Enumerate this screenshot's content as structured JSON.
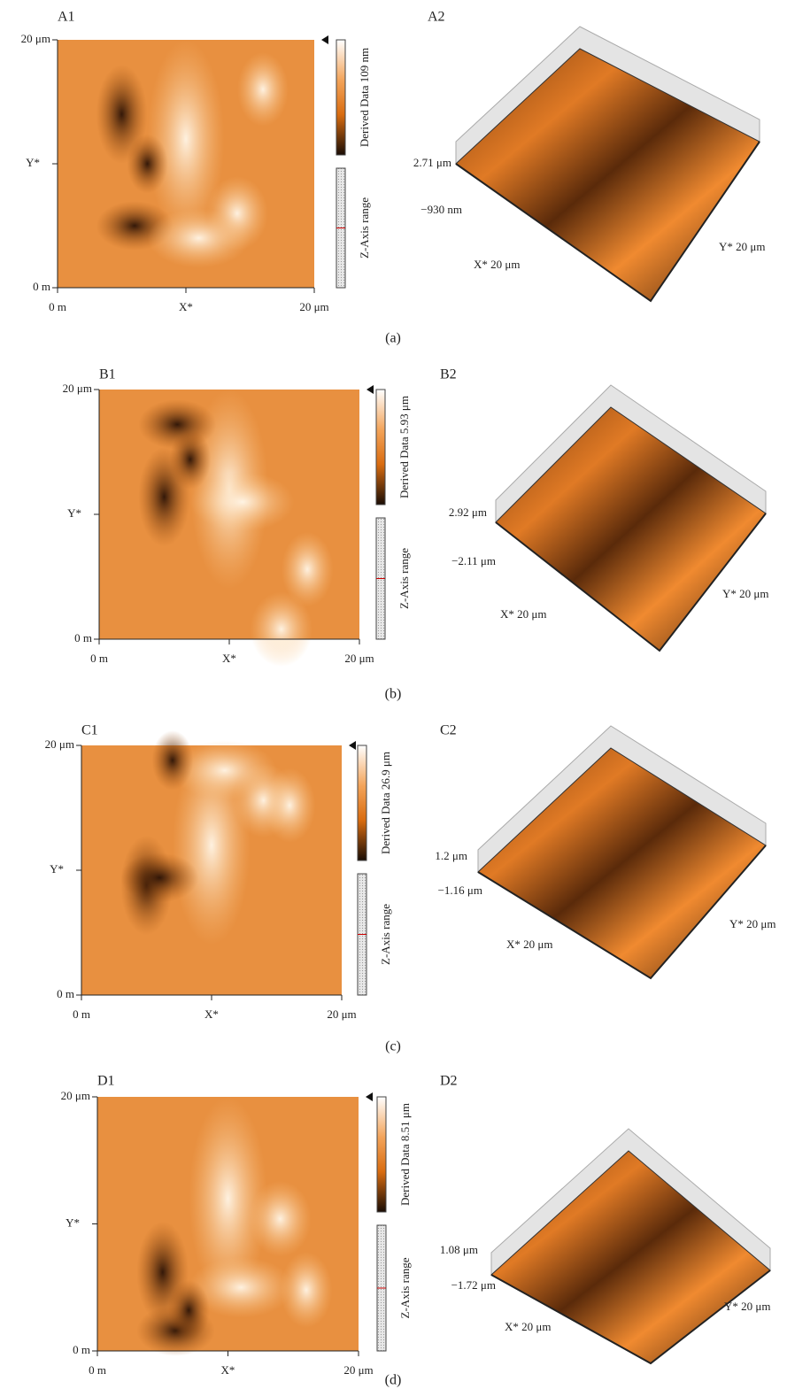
{
  "panels": [
    {
      "label_2d": "A1",
      "label_3d": "A2",
      "y_top": "20 μm",
      "y_mid": "Y*",
      "y_bottom": "0 m",
      "x_left": "0 m",
      "x_mid": "X*",
      "x_right": "20 μm",
      "colorbar_label": "Derived Data 109 nm",
      "z_range_label": "Z-Axis range",
      "z_max": "2.71 μm",
      "z_min": "−930 nm",
      "x_3d": "X* 20 μm",
      "y_3d": "Y* 20 μm",
      "caption": "(a)"
    },
    {
      "label_2d": "B1",
      "label_3d": "B2",
      "y_top": "20 μm",
      "y_mid": "Y*",
      "y_bottom": "0 m",
      "x_left": "0 m",
      "x_mid": "X*",
      "x_right": "20 μm",
      "colorbar_label": "Derived Data 5.93 μm",
      "z_range_label": "Z-Axis range",
      "z_max": "2.92 μm",
      "z_min": "−2.11 μm",
      "x_3d": "X* 20 μm",
      "y_3d": "Y* 20 μm",
      "caption": "(b)"
    },
    {
      "label_2d": "C1",
      "label_3d": "C2",
      "y_top": "20 μm",
      "y_mid": "Y*",
      "y_bottom": "0 m",
      "x_left": "0 m",
      "x_mid": "X*",
      "x_right": "20 μm",
      "colorbar_label": "Derived Data 26.9 μm",
      "z_range_label": "Z-Axis range",
      "z_max": "1.2 μm",
      "z_min": "−1.16 μm",
      "x_3d": "X* 20 μm",
      "y_3d": "Y* 20 μm",
      "caption": "(c)"
    },
    {
      "label_2d": "D1",
      "label_3d": "D2",
      "y_top": "20 μm",
      "y_mid": "Y*",
      "y_bottom": "0 m",
      "x_left": "0 m",
      "x_mid": "X*",
      "x_right": "20 μm",
      "colorbar_label": "Derived Data 8.51 μm",
      "z_range_label": "Z-Axis range",
      "z_max": "1.08 μm",
      "z_min": "−1.72 μm",
      "x_3d": "X* 20 μm",
      "y_3d": "Y* 20 μm",
      "caption": "(d)"
    }
  ]
}
